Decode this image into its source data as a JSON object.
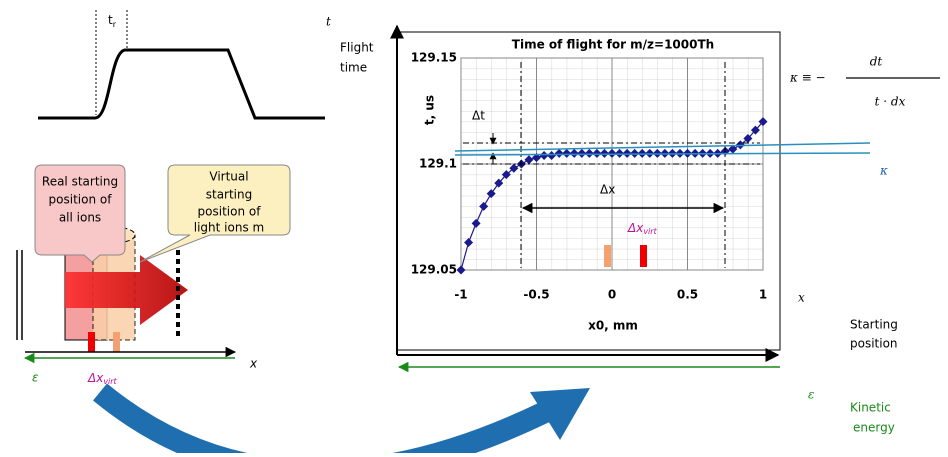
{
  "chart_data": {
    "type": "line",
    "title": "Time of flight for m/z=1000Th",
    "x_label": "x0, mm",
    "y_label": "t, us",
    "x": [
      -1,
      -0.95,
      -0.9,
      -0.85,
      -0.8,
      -0.75,
      -0.7,
      -0.65,
      -0.6,
      -0.55,
      -0.5,
      -0.45,
      -0.4,
      -0.35,
      -0.3,
      -0.25,
      -0.2,
      -0.15,
      -0.1,
      -0.05,
      0,
      0.05,
      0.1,
      0.15,
      0.2,
      0.25,
      0.3,
      0.35,
      0.4,
      0.45,
      0.5,
      0.55,
      0.6,
      0.65,
      0.7,
      0.75,
      0.8,
      0.85,
      0.9,
      0.95,
      1
    ],
    "series": [
      {
        "color": "#1a1a8c",
        "values": [
          129.05,
          129.063,
          129.072,
          129.08,
          129.086,
          129.091,
          129.095,
          129.098,
          129.1,
          129.102,
          129.103,
          129.104,
          129.104,
          129.105,
          129.105,
          129.105,
          129.105,
          129.105,
          129.105,
          129.105,
          129.105,
          129.105,
          129.105,
          129.105,
          129.105,
          129.105,
          129.105,
          129.105,
          129.105,
          129.105,
          129.105,
          129.105,
          129.105,
          129.105,
          129.105,
          129.106,
          129.107,
          129.109,
          129.112,
          129.116,
          129.12
        ]
      }
    ],
    "xlim": [
      -1,
      1
    ],
    "ylim": [
      129.05,
      129.15
    ],
    "xticks": [
      -1,
      -0.5,
      0,
      0.5,
      1
    ],
    "yticks": [
      129.05,
      129.1,
      129.15
    ],
    "grid": true
  },
  "diagram": {
    "pulse_label": {
      "symbol": "t",
      "sub": "r"
    },
    "real_box": [
      "Real starting",
      "position of",
      "all ions"
    ],
    "virtual_box": [
      "Virtual",
      "starting",
      "position of",
      "light ions m"
    ],
    "left_energy": "ε",
    "left_dx": {
      "symbol": "Δx",
      "sub": "virt"
    },
    "left_x": "x",
    "t_axis": "t",
    "t_axis_label": [
      "Flight",
      "time"
    ],
    "x_axis": "x",
    "x_axis_label": [
      "Starting",
      "position"
    ],
    "energy_axis": "ε",
    "energy_label": [
      "Kinetic",
      "energy"
    ],
    "kappa_def": {
      "lhs": "κ ≡ −",
      "num": "dt",
      "den": "t · dx"
    },
    "kappa": "κ",
    "delta_t": "Δt",
    "delta_x": "Δx",
    "chart_dx": {
      "symbol": "Δx",
      "sub": "virt"
    }
  }
}
